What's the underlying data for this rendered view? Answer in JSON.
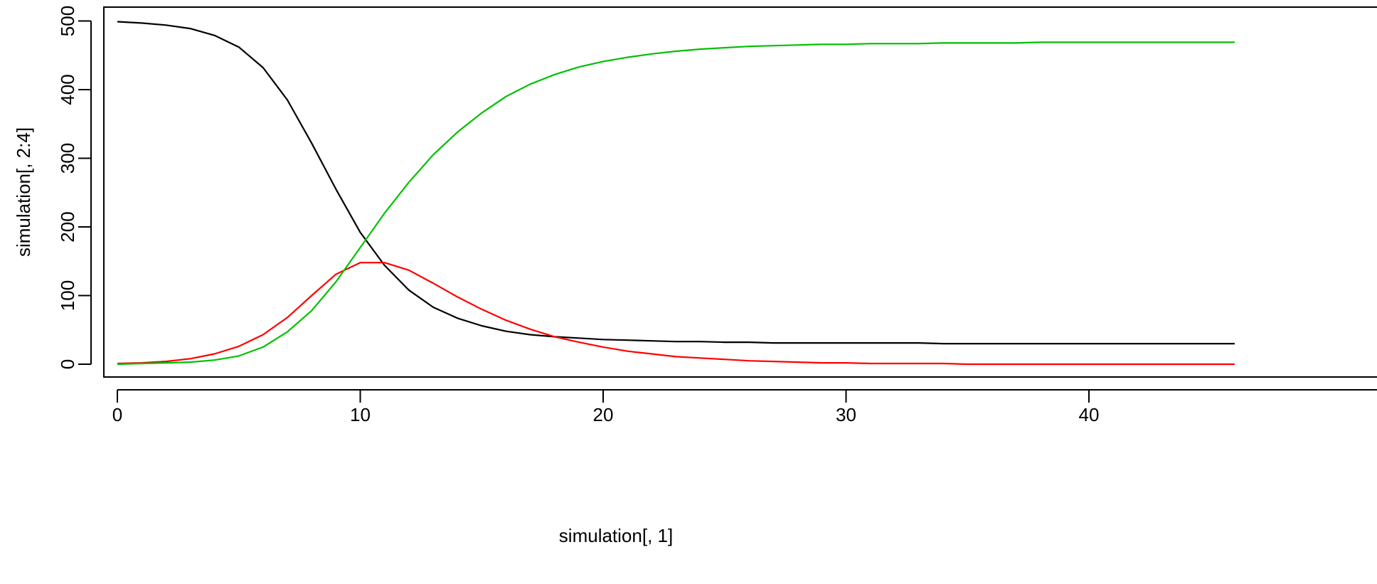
{
  "chart_data": {
    "type": "line",
    "title": "",
    "xlabel": "simulation[, 1]",
    "ylabel": "simulation[, 2:4]",
    "xlim": [
      0,
      46
    ],
    "ylim": [
      0,
      500
    ],
    "x_ticks": [
      "0",
      "10",
      "20",
      "30",
      "40"
    ],
    "y_ticks": [
      "0",
      "100",
      "200",
      "300",
      "400",
      "500"
    ],
    "grid": false,
    "legend": "none",
    "x": [
      0,
      1,
      2,
      3,
      4,
      5,
      6,
      7,
      8,
      9,
      10,
      11,
      12,
      13,
      14,
      15,
      16,
      17,
      18,
      19,
      20,
      21,
      22,
      23,
      24,
      25,
      26,
      27,
      28,
      29,
      30,
      31,
      32,
      33,
      34,
      35,
      36,
      37,
      38,
      39,
      40,
      41,
      42,
      43,
      44,
      45,
      46
    ],
    "series": [
      {
        "color": "#000000",
        "values": [
          499,
          497,
          494,
          489,
          479,
          462,
          432,
          385,
          322,
          255,
          192,
          144,
          108,
          83,
          67,
          56,
          48,
          43,
          40,
          38,
          36,
          35,
          34,
          33,
          33,
          32,
          32,
          31,
          31,
          31,
          31,
          31,
          31,
          31,
          30,
          30,
          30,
          30,
          30,
          30,
          30,
          30,
          30,
          30,
          30,
          30,
          30
        ]
      },
      {
        "color": "#ff0000",
        "values": [
          1,
          2,
          4,
          8,
          15,
          26,
          43,
          68,
          100,
          131,
          148,
          148,
          137,
          118,
          98,
          80,
          64,
          51,
          40,
          32,
          25,
          19,
          15,
          11,
          9,
          7,
          5,
          4,
          3,
          2,
          2,
          1,
          1,
          1,
          1,
          0,
          0,
          0,
          0,
          0,
          0,
          0,
          0,
          0,
          0,
          0,
          0
        ]
      },
      {
        "color": "#00c000",
        "values": [
          0,
          1,
          2,
          3,
          6,
          12,
          25,
          47,
          78,
          120,
          170,
          220,
          265,
          305,
          338,
          366,
          390,
          408,
          422,
          433,
          441,
          447,
          452,
          456,
          459,
          461,
          463,
          464,
          465,
          466,
          466,
          467,
          467,
          467,
          468,
          468,
          468,
          468,
          469,
          469,
          469,
          469,
          469,
          469,
          469,
          469,
          469
        ]
      }
    ]
  }
}
